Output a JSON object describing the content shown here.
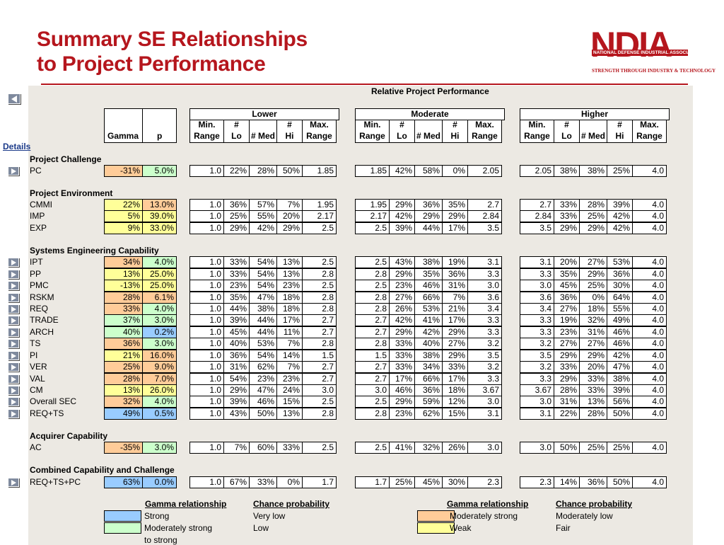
{
  "header": {
    "title_line1": "Summary SE Relationships",
    "title_line2": "to Project Performance"
  },
  "logo": {
    "letters": "NDIA",
    "band_text": "NATIONAL DEFENSE INDUSTRIAL ASSOCIATION",
    "tagline": "STRENGTH THROUGH INDUSTRY & TECHNOLOGY"
  },
  "nav": {
    "details_label": "Details"
  },
  "table": {
    "super_header": "Relative Project Performance",
    "col_gamma": "Gamma",
    "col_p": "p",
    "groups": [
      "Lower",
      "Moderate",
      "Higher"
    ],
    "sub_top": [
      "Min.",
      "#",
      "",
      "#",
      "Max."
    ],
    "sub_bottom": [
      "Range",
      "Lo",
      "# Med",
      "Hi",
      "Range"
    ],
    "sections": [
      {
        "title": "Project Challenge",
        "rows": [
          {
            "label": "PC",
            "nav": true,
            "gamma": "-31%",
            "p": "5.0%",
            "gc": "orange",
            "pc": "green",
            "lower": [
              "1.0",
              "22%",
              "28%",
              "50%",
              "1.85"
            ],
            "moderate": [
              "1.85",
              "42%",
              "58%",
              "0%",
              "2.05"
            ],
            "higher": [
              "2.05",
              "38%",
              "38%",
              "25%",
              "4.0"
            ]
          }
        ]
      },
      {
        "title": "Project Environment",
        "rows": [
          {
            "label": "CMMI",
            "nav": false,
            "gamma": "22%",
            "p": "13.0%",
            "gc": "yellow",
            "pc": "orange",
            "lower": [
              "1.0",
              "36%",
              "57%",
              "7%",
              "1.95"
            ],
            "moderate": [
              "1.95",
              "29%",
              "36%",
              "35%",
              "2.7"
            ],
            "higher": [
              "2.7",
              "33%",
              "28%",
              "39%",
              "4.0"
            ]
          },
          {
            "label": "IMP",
            "nav": false,
            "gamma": "5%",
            "p": "39.0%",
            "gc": "yellow",
            "pc": "yellow",
            "lower": [
              "1.0",
              "25%",
              "55%",
              "20%",
              "2.17"
            ],
            "moderate": [
              "2.17",
              "42%",
              "29%",
              "29%",
              "2.84"
            ],
            "higher": [
              "2.84",
              "33%",
              "25%",
              "42%",
              "4.0"
            ]
          },
          {
            "label": "EXP",
            "nav": false,
            "gamma": "9%",
            "p": "33.0%",
            "gc": "yellow",
            "pc": "yellow",
            "lower": [
              "1.0",
              "29%",
              "42%",
              "29%",
              "2.5"
            ],
            "moderate": [
              "2.5",
              "39%",
              "44%",
              "17%",
              "3.5"
            ],
            "higher": [
              "3.5",
              "29%",
              "29%",
              "42%",
              "4.0"
            ]
          }
        ]
      },
      {
        "title": "Systems Engineering Capability",
        "rows": [
          {
            "label": "IPT",
            "nav": true,
            "gamma": "34%",
            "p": "4.0%",
            "gc": "orange",
            "pc": "green",
            "lower": [
              "1.0",
              "33%",
              "54%",
              "13%",
              "2.5"
            ],
            "moderate": [
              "2.5",
              "43%",
              "38%",
              "19%",
              "3.1"
            ],
            "higher": [
              "3.1",
              "20%",
              "27%",
              "53%",
              "4.0"
            ]
          },
          {
            "label": "PP",
            "nav": true,
            "gamma": "13%",
            "p": "25.0%",
            "gc": "yellow",
            "pc": "yellow",
            "lower": [
              "1.0",
              "33%",
              "54%",
              "13%",
              "2.8"
            ],
            "moderate": [
              "2.8",
              "29%",
              "35%",
              "36%",
              "3.3"
            ],
            "higher": [
              "3.3",
              "35%",
              "29%",
              "36%",
              "4.0"
            ]
          },
          {
            "label": "PMC",
            "nav": true,
            "gamma": "-13%",
            "p": "25.0%",
            "gc": "yellow",
            "pc": "yellow",
            "lower": [
              "1.0",
              "23%",
              "54%",
              "23%",
              "2.5"
            ],
            "moderate": [
              "2.5",
              "23%",
              "46%",
              "31%",
              "3.0"
            ],
            "higher": [
              "3.0",
              "45%",
              "25%",
              "30%",
              "4.0"
            ]
          },
          {
            "label": "RSKM",
            "nav": true,
            "gamma": "28%",
            "p": "6.1%",
            "gc": "orange",
            "pc": "orange",
            "lower": [
              "1.0",
              "35%",
              "47%",
              "18%",
              "2.8"
            ],
            "moderate": [
              "2.8",
              "27%",
              "66%",
              "7%",
              "3.6"
            ],
            "higher": [
              "3.6",
              "36%",
              "0%",
              "64%",
              "4.0"
            ]
          },
          {
            "label": "REQ",
            "nav": true,
            "gamma": "33%",
            "p": "4.0%",
            "gc": "orange",
            "pc": "green",
            "lower": [
              "1.0",
              "44%",
              "38%",
              "18%",
              "2.8"
            ],
            "moderate": [
              "2.8",
              "26%",
              "53%",
              "21%",
              "3.4"
            ],
            "higher": [
              "3.4",
              "27%",
              "18%",
              "55%",
              "4.0"
            ]
          },
          {
            "label": "TRADE",
            "nav": true,
            "gamma": "37%",
            "p": "3.0%",
            "gc": "green",
            "pc": "green",
            "lower": [
              "1.0",
              "39%",
              "44%",
              "17%",
              "2.7"
            ],
            "moderate": [
              "2.7",
              "42%",
              "41%",
              "17%",
              "3.3"
            ],
            "higher": [
              "3.3",
              "19%",
              "32%",
              "49%",
              "4.0"
            ]
          },
          {
            "label": "ARCH",
            "nav": true,
            "gamma": "40%",
            "p": "0.2%",
            "gc": "green",
            "pc": "blue",
            "lower": [
              "1.0",
              "45%",
              "44%",
              "11%",
              "2.7"
            ],
            "moderate": [
              "2.7",
              "29%",
              "42%",
              "29%",
              "3.3"
            ],
            "higher": [
              "3.3",
              "23%",
              "31%",
              "46%",
              "4.0"
            ]
          },
          {
            "label": "TS",
            "nav": true,
            "gamma": "36%",
            "p": "3.0%",
            "gc": "orange",
            "pc": "green",
            "lower": [
              "1.0",
              "40%",
              "53%",
              "7%",
              "2.8"
            ],
            "moderate": [
              "2.8",
              "33%",
              "40%",
              "27%",
              "3.2"
            ],
            "higher": [
              "3.2",
              "27%",
              "27%",
              "46%",
              "4.0"
            ]
          },
          {
            "label": "PI",
            "nav": true,
            "gamma": "21%",
            "p": "16.0%",
            "gc": "yellow",
            "pc": "orange",
            "lower": [
              "1.0",
              "36%",
              "54%",
              "14%",
              "1.5"
            ],
            "moderate": [
              "1.5",
              "33%",
              "38%",
              "29%",
              "3.5"
            ],
            "higher": [
              "3.5",
              "29%",
              "29%",
              "42%",
              "4.0"
            ]
          },
          {
            "label": "VER",
            "nav": true,
            "gamma": "25%",
            "p": "9.0%",
            "gc": "orange",
            "pc": "orange",
            "lower": [
              "1.0",
              "31%",
              "62%",
              "7%",
              "2.7"
            ],
            "moderate": [
              "2.7",
              "33%",
              "34%",
              "33%",
              "3.2"
            ],
            "higher": [
              "3.2",
              "33%",
              "20%",
              "47%",
              "4.0"
            ]
          },
          {
            "label": "VAL",
            "nav": true,
            "gamma": "28%",
            "p": "7.0%",
            "gc": "orange",
            "pc": "orange",
            "lower": [
              "1.0",
              "54%",
              "23%",
              "23%",
              "2.7"
            ],
            "moderate": [
              "2.7",
              "17%",
              "66%",
              "17%",
              "3.3"
            ],
            "higher": [
              "3.3",
              "29%",
              "33%",
              "38%",
              "4.0"
            ]
          },
          {
            "label": "CM",
            "nav": true,
            "gamma": "13%",
            "p": "26.0%",
            "gc": "yellow",
            "pc": "yellow",
            "lower": [
              "1.0",
              "29%",
              "47%",
              "24%",
              "3.0"
            ],
            "moderate": [
              "3.0",
              "46%",
              "36%",
              "18%",
              "3.67"
            ],
            "higher": [
              "3.67",
              "28%",
              "33%",
              "39%",
              "4.0"
            ]
          },
          {
            "label": "Overall SEC",
            "nav": true,
            "gamma": "32%",
            "p": "4.0%",
            "gc": "orange",
            "pc": "green",
            "lower": [
              "1.0",
              "39%",
              "46%",
              "15%",
              "2.5"
            ],
            "moderate": [
              "2.5",
              "29%",
              "59%",
              "12%",
              "3.0"
            ],
            "higher": [
              "3.0",
              "31%",
              "13%",
              "56%",
              "4.0"
            ]
          },
          {
            "label": "REQ+TS",
            "nav": true,
            "gamma": "49%",
            "p": "0.5%",
            "gc": "blue",
            "pc": "blue",
            "lower": [
              "1.0",
              "43%",
              "50%",
              "13%",
              "2.8"
            ],
            "moderate": [
              "2.8",
              "23%",
              "62%",
              "15%",
              "3.1"
            ],
            "higher": [
              "3.1",
              "22%",
              "28%",
              "50%",
              "4.0"
            ]
          }
        ]
      },
      {
        "title": "Acquirer Capability",
        "rows": [
          {
            "label": "AC",
            "nav": false,
            "gamma": "-35%",
            "p": "3.0%",
            "gc": "orange",
            "pc": "green",
            "lower": [
              "1.0",
              "7%",
              "60%",
              "33%",
              "2.5"
            ],
            "moderate": [
              "2.5",
              "41%",
              "32%",
              "26%",
              "3.0"
            ],
            "higher": [
              "3.0",
              "50%",
              "25%",
              "25%",
              "4.0"
            ]
          }
        ]
      },
      {
        "title": "Combined Capability and Challenge",
        "rows": [
          {
            "label": "REQ+TS+PC",
            "nav": true,
            "gamma": "63%",
            "p": "0.0%",
            "gc": "blue",
            "pc": "blue",
            "lower": [
              "1.0",
              "67%",
              "33%",
              "0%",
              "1.7"
            ],
            "moderate": [
              "1.7",
              "25%",
              "45%",
              "30%",
              "2.3"
            ],
            "higher": [
              "2.3",
              "14%",
              "36%",
              "50%",
              "4.0"
            ]
          }
        ]
      }
    ]
  },
  "legend": {
    "gamma_head": "Gamma relationship",
    "chance_head": "Chance probability",
    "left": [
      {
        "gamma": "Strong",
        "chance": "Very low",
        "color": "blue"
      },
      {
        "gamma": "Moderately strong",
        "gamma2": "to strong",
        "chance": "Low",
        "color": "green"
      }
    ],
    "right": [
      {
        "gamma": "Moderately strong",
        "chance": "Moderately low",
        "color": "orange"
      },
      {
        "gamma": "Weak",
        "chance": "Fair",
        "color": "yellow"
      }
    ]
  }
}
